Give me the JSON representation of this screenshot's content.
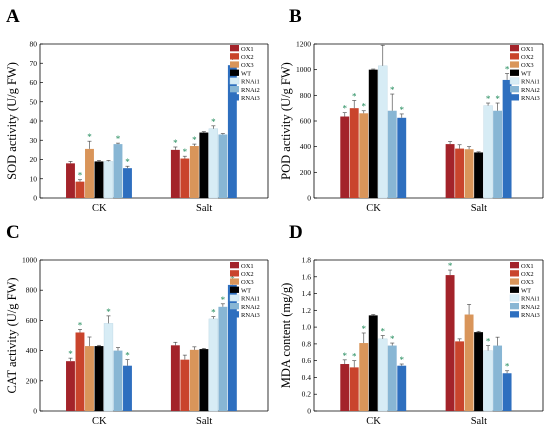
{
  "figure": {
    "series_names": [
      "OX1",
      "OX2",
      "OX3",
      "WT",
      "RNAi1",
      "RNAi2",
      "RNAi3"
    ],
    "colors": [
      "#a3232a",
      "#c9442c",
      "#d9955a",
      "#000000",
      "#d7ecf5",
      "#88b6d4",
      "#2e6fbf"
    ],
    "significance_marker": "*"
  },
  "chart_data": [
    {
      "type": "bar",
      "panel": "A",
      "categories": [
        "CK",
        "Salt"
      ],
      "ylabel": "SOD activity (U/g FW)",
      "ylim": [
        0,
        80
      ],
      "yticks": [
        0,
        10,
        20,
        30,
        40,
        50,
        60,
        70,
        80
      ],
      "series": [
        {
          "name": "OX1",
          "values": [
            18,
            25
          ],
          "errors": [
            1.0,
            1.5
          ],
          "sig": [
            false,
            true
          ]
        },
        {
          "name": "OX2",
          "values": [
            8.5,
            20.5
          ],
          "errors": [
            1.0,
            1.2
          ],
          "sig": [
            true,
            true
          ]
        },
        {
          "name": "OX3",
          "values": [
            25.5,
            27
          ],
          "errors": [
            4.0,
            1.0
          ],
          "sig": [
            true,
            true
          ]
        },
        {
          "name": "WT",
          "values": [
            19,
            34
          ],
          "errors": [
            0.5,
            0.5
          ],
          "sig": [
            false,
            false
          ]
        },
        {
          "name": "RNAi1",
          "values": [
            19,
            36
          ],
          "errors": [
            0.5,
            1.5
          ],
          "sig": [
            false,
            true
          ]
        },
        {
          "name": "RNAi2",
          "values": [
            28,
            33
          ],
          "errors": [
            0.5,
            0.5
          ],
          "sig": [
            true,
            false
          ]
        },
        {
          "name": "RNAi3",
          "values": [
            15.5,
            69
          ],
          "errors": [
            1.0,
            0.5
          ],
          "sig": [
            true,
            true
          ]
        }
      ]
    },
    {
      "type": "bar",
      "panel": "B",
      "categories": [
        "CK",
        "Salt"
      ],
      "ylabel": "POD activity (U/g FW)",
      "ylim": [
        0,
        1200
      ],
      "yticks": [
        0,
        200,
        400,
        600,
        800,
        1000,
        1200
      ],
      "series": [
        {
          "name": "OX1",
          "values": [
            635,
            420
          ],
          "errors": [
            30,
            20
          ],
          "sig": [
            true,
            false
          ]
        },
        {
          "name": "OX2",
          "values": [
            700,
            385
          ],
          "errors": [
            60,
            30
          ],
          "sig": [
            true,
            false
          ]
        },
        {
          "name": "OX3",
          "values": [
            660,
            380
          ],
          "errors": [
            20,
            20
          ],
          "sig": [
            true,
            false
          ]
        },
        {
          "name": "WT",
          "values": [
            1000,
            355
          ],
          "errors": [
            5,
            5
          ],
          "sig": [
            false,
            false
          ]
        },
        {
          "name": "RNAi1",
          "values": [
            1030,
            720
          ],
          "errors": [
            160,
            20
          ],
          "sig": [
            false,
            true
          ]
        },
        {
          "name": "RNAi2",
          "values": [
            680,
            680
          ],
          "errors": [
            130,
            60
          ],
          "sig": [
            true,
            true
          ]
        },
        {
          "name": "RNAi3",
          "values": [
            625,
            920
          ],
          "errors": [
            30,
            50
          ],
          "sig": [
            true,
            true
          ]
        }
      ]
    },
    {
      "type": "bar",
      "panel": "C",
      "categories": [
        "CK",
        "Salt"
      ],
      "ylabel": "CAT activity (U/g FW)",
      "ylim": [
        0,
        1000
      ],
      "yticks": [
        0,
        200,
        400,
        600,
        800,
        1000
      ],
      "series": [
        {
          "name": "OX1",
          "values": [
            330,
            435
          ],
          "errors": [
            20,
            20
          ],
          "sig": [
            true,
            false
          ]
        },
        {
          "name": "OX2",
          "values": [
            520,
            340
          ],
          "errors": [
            20,
            30
          ],
          "sig": [
            true,
            false
          ]
        },
        {
          "name": "OX3",
          "values": [
            430,
            405
          ],
          "errors": [
            60,
            20
          ],
          "sig": [
            false,
            false
          ]
        },
        {
          "name": "WT",
          "values": [
            430,
            410
          ],
          "errors": [
            5,
            5
          ],
          "sig": [
            false,
            false
          ]
        },
        {
          "name": "RNAi1",
          "values": [
            580,
            610
          ],
          "errors": [
            50,
            15
          ],
          "sig": [
            true,
            true
          ]
        },
        {
          "name": "RNAi2",
          "values": [
            400,
            690
          ],
          "errors": [
            20,
            20
          ],
          "sig": [
            false,
            true
          ]
        },
        {
          "name": "RNAi3",
          "values": [
            300,
            835
          ],
          "errors": [
            40,
            15
          ],
          "sig": [
            true,
            true
          ]
        }
      ]
    },
    {
      "type": "bar",
      "panel": "D",
      "categories": [
        "CK",
        "Salt"
      ],
      "ylabel": "MDA content (mg/g)",
      "ylim": [
        0,
        1.8
      ],
      "yticks": [
        "0",
        "0.2",
        "0.4",
        "0.6",
        "0.8",
        "1.0",
        "1.2",
        "1.4",
        "1.6",
        "1.8"
      ],
      "series": [
        {
          "name": "OX1",
          "values": [
            0.56,
            1.62
          ],
          "errors": [
            0.05,
            0.06
          ],
          "sig": [
            true,
            true
          ]
        },
        {
          "name": "OX2",
          "values": [
            0.52,
            0.83
          ],
          "errors": [
            0.08,
            0.03
          ],
          "sig": [
            true,
            false
          ]
        },
        {
          "name": "OX3",
          "values": [
            0.81,
            1.15
          ],
          "errors": [
            0.12,
            0.12
          ],
          "sig": [
            true,
            false
          ]
        },
        {
          "name": "WT",
          "values": [
            1.14,
            0.94
          ],
          "errors": [
            0.01,
            0.01
          ],
          "sig": [
            false,
            false
          ]
        },
        {
          "name": "RNAi1",
          "values": [
            0.86,
            0.72
          ],
          "errors": [
            0.04,
            0.06
          ],
          "sig": [
            true,
            true
          ]
        },
        {
          "name": "RNAi2",
          "values": [
            0.78,
            0.78
          ],
          "errors": [
            0.03,
            0.1
          ],
          "sig": [
            true,
            false
          ]
        },
        {
          "name": "RNAi3",
          "values": [
            0.54,
            0.45
          ],
          "errors": [
            0.02,
            0.03
          ],
          "sig": [
            true,
            true
          ]
        }
      ]
    }
  ]
}
